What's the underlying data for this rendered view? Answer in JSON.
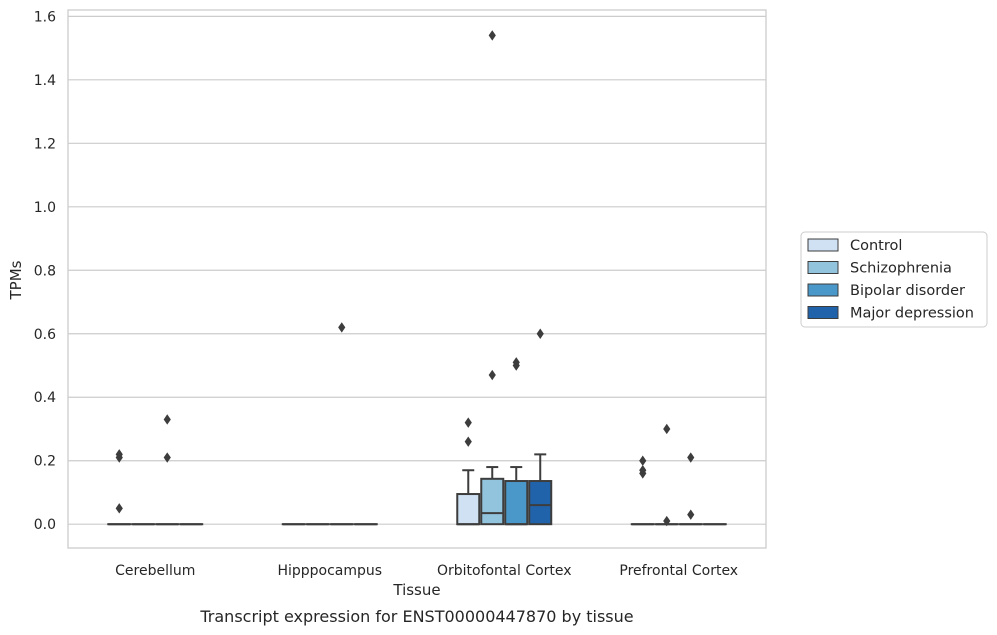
{
  "chart_data": {
    "type": "box",
    "xlabel": "Tissue",
    "ylabel": "TPMs",
    "caption": "Transcript expression for ENST00000447870 by tissue",
    "categories": [
      "Cerebellum",
      "Hipppocampus",
      "Orbitofontal Cortex",
      "Prefrontal Cortex"
    ],
    "ylim": [
      -0.075,
      1.62
    ],
    "yticks": [
      0.0,
      0.2,
      0.4,
      0.6,
      0.8,
      1.0,
      1.2,
      1.4,
      1.6
    ],
    "ytick_labels": [
      "0.0",
      "0.2",
      "0.4",
      "0.6",
      "0.8",
      "1.0",
      "1.2",
      "1.4",
      "1.6"
    ],
    "grid": "horizontal",
    "legend_position": "right",
    "series": [
      {
        "name": "Control",
        "color": "#cfe1f2",
        "boxes": [
          {
            "q1": 0,
            "median": 0,
            "q3": 0,
            "whislo": 0,
            "whishi": 0,
            "outliers": [
              0.05,
              0.21,
              0.22
            ]
          },
          {
            "q1": 0,
            "median": 0,
            "q3": 0,
            "whislo": 0,
            "whishi": 0,
            "outliers": []
          },
          {
            "q1": 0,
            "median": 0,
            "q3": 0.095,
            "whislo": 0,
            "whishi": 0.17,
            "outliers": [
              0.26,
              0.32
            ]
          },
          {
            "q1": 0,
            "median": 0,
            "q3": 0,
            "whislo": 0,
            "whishi": 0,
            "outliers": [
              0.16,
              0.17,
              0.2
            ]
          }
        ]
      },
      {
        "name": "Schizophrenia",
        "color": "#93c4de",
        "boxes": [
          {
            "q1": 0,
            "median": 0,
            "q3": 0,
            "whislo": 0,
            "whishi": 0,
            "outliers": []
          },
          {
            "q1": 0,
            "median": 0,
            "q3": 0,
            "whislo": 0,
            "whishi": 0,
            "outliers": []
          },
          {
            "q1": 0,
            "median": 0.035,
            "q3": 0.143,
            "whislo": 0,
            "whishi": 0.18,
            "outliers": [
              0.47,
              1.54
            ]
          },
          {
            "q1": 0,
            "median": 0,
            "q3": 0,
            "whislo": 0,
            "whishi": 0,
            "outliers": [
              0.01,
              0.3
            ]
          }
        ]
      },
      {
        "name": "Bipolar disorder",
        "color": "#4a98c9",
        "boxes": [
          {
            "q1": 0,
            "median": 0,
            "q3": 0,
            "whislo": 0,
            "whishi": 0,
            "outliers": [
              0.21,
              0.33
            ]
          },
          {
            "q1": 0,
            "median": 0,
            "q3": 0,
            "whislo": 0,
            "whishi": 0,
            "outliers": [
              0.62
            ]
          },
          {
            "q1": 0,
            "median": 0,
            "q3": 0.136,
            "whislo": 0,
            "whishi": 0.18,
            "outliers": [
              0.5,
              0.51
            ]
          },
          {
            "q1": 0,
            "median": 0,
            "q3": 0,
            "whislo": 0,
            "whishi": 0,
            "outliers": [
              0.03,
              0.21
            ]
          }
        ]
      },
      {
        "name": "Major depression",
        "color": "#2163aa",
        "boxes": [
          {
            "q1": 0,
            "median": 0,
            "q3": 0,
            "whislo": 0,
            "whishi": 0,
            "outliers": []
          },
          {
            "q1": 0,
            "median": 0,
            "q3": 0,
            "whislo": 0,
            "whishi": 0,
            "outliers": []
          },
          {
            "q1": 0,
            "median": 0.06,
            "q3": 0.136,
            "whislo": 0,
            "whishi": 0.22,
            "outliers": [
              0.6
            ]
          },
          {
            "q1": 0,
            "median": 0,
            "q3": 0,
            "whislo": 0,
            "whishi": 0,
            "outliers": []
          }
        ]
      }
    ]
  }
}
